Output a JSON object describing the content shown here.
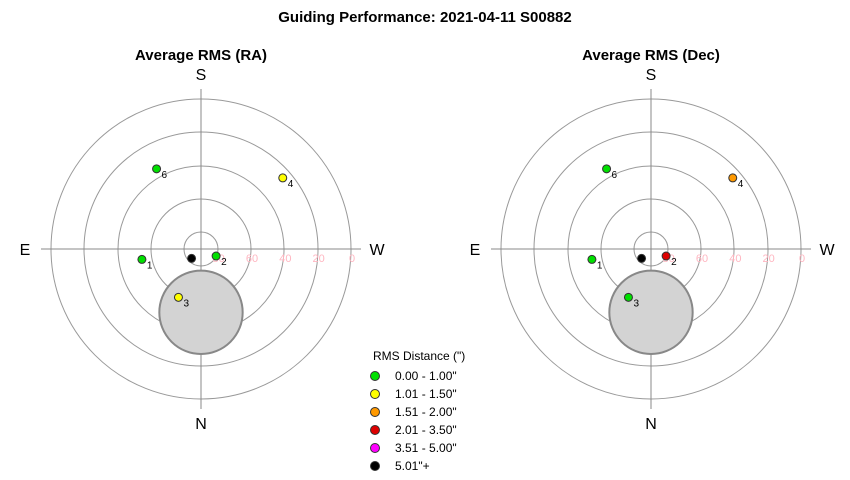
{
  "title": "Guiding Performance: 2021-04-11 S00882",
  "legend": {
    "title": "RMS Distance (\")",
    "items": [
      {
        "label": "0.00 - 1.00\"",
        "color": "#00e000"
      },
      {
        "label": "1.01 - 1.50\"",
        "color": "#ffff00"
      },
      {
        "label": "1.51 - 2.00\"",
        "color": "#ff9900"
      },
      {
        "label": "2.01 - 3.50\"",
        "color": "#dd0000"
      },
      {
        "label": "3.51 - 5.00\"",
        "color": "#ff00ff"
      },
      {
        "label": "5.01\"+",
        "color": "#000000"
      }
    ]
  },
  "chart_data": [
    {
      "type": "scatter",
      "subtype": "polar",
      "title": "Average RMS (RA)",
      "directions": {
        "top": "S",
        "bottom": "N",
        "left": "E",
        "right": "W"
      },
      "radial_ticks": [
        "80",
        "60",
        "40",
        "20",
        "0"
      ],
      "altitude_range": [
        0,
        90
      ],
      "obstruction": {
        "azimuth_deg": 180,
        "altitude": 52,
        "radius_deg": 25
      },
      "points": [
        {
          "label": "1",
          "azimuth_deg": 100,
          "altitude": 54,
          "rms_class": 0
        },
        {
          "label": "3",
          "azimuth_deg": 155,
          "altitude": 58,
          "rms_class": 1
        },
        {
          "label": "",
          "azimuth_deg": 135,
          "altitude": 82,
          "rms_class": 5
        },
        {
          "label": "2",
          "azimuth_deg": 245,
          "altitude": 80,
          "rms_class": 0
        },
        {
          "label": "4",
          "azimuth_deg": 311,
          "altitude": 25,
          "rms_class": 1
        },
        {
          "label": "6",
          "azimuth_deg": 29,
          "altitude": 35,
          "rms_class": 0
        }
      ]
    },
    {
      "type": "scatter",
      "subtype": "polar",
      "title": "Average RMS (Dec)",
      "directions": {
        "top": "S",
        "bottom": "N",
        "left": "E",
        "right": "W"
      },
      "radial_ticks": [
        "80",
        "60",
        "40",
        "20",
        "0"
      ],
      "altitude_range": [
        0,
        90
      ],
      "obstruction": {
        "azimuth_deg": 180,
        "altitude": 52,
        "radius_deg": 25
      },
      "points": [
        {
          "label": "1",
          "azimuth_deg": 100,
          "altitude": 54,
          "rms_class": 0
        },
        {
          "label": "3",
          "azimuth_deg": 155,
          "altitude": 58,
          "rms_class": 0
        },
        {
          "label": "",
          "azimuth_deg": 135,
          "altitude": 82,
          "rms_class": 5
        },
        {
          "label": "2",
          "azimuth_deg": 245,
          "altitude": 80,
          "rms_class": 3
        },
        {
          "label": "4",
          "azimuth_deg": 311,
          "altitude": 25,
          "rms_class": 2
        },
        {
          "label": "6",
          "azimuth_deg": 29,
          "altitude": 35,
          "rms_class": 0
        }
      ]
    }
  ]
}
